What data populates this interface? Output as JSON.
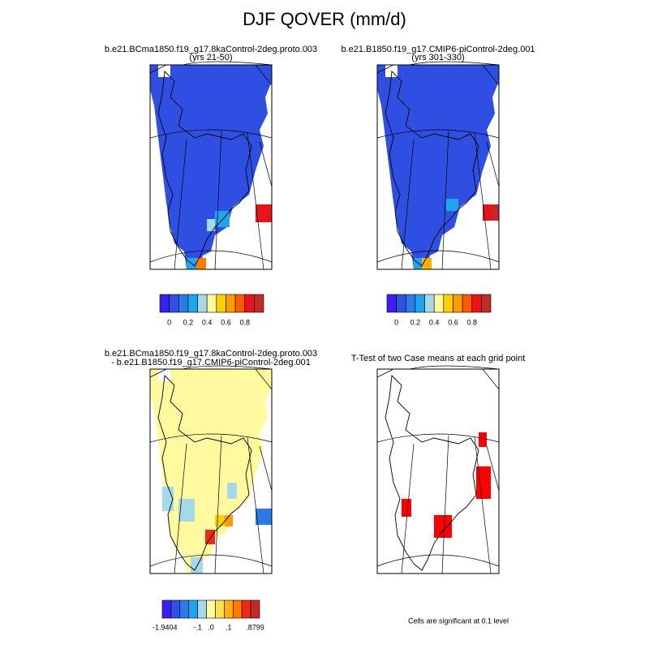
{
  "title": "DJF QOVER (mm/d)",
  "panels": [
    {
      "title": "b.e21.BCma1850.f19_g17.8kaControl-2deg.proto.003",
      "subtitle": "(yrs 21-50)"
    },
    {
      "title": "b.e21.B1850.f19_g17.CMIP6-piControl-2deg.001",
      "subtitle": "(yrs 301-330)"
    },
    {
      "title": "b.e21.BCma1850.f19_g17.8kaControl-2deg.proto.003",
      "subtitle": "- b.e21.B1850.f19_g17.CMIP6-piControl-2deg.001"
    },
    {
      "title": "T-Test of two Case means at each grid point",
      "note": "Cells are significant at 0.1 level"
    }
  ],
  "colorbars": [
    {
      "colors": [
        "#3a1ef2",
        "#3050e0",
        "#2a7ae8",
        "#21a4f0",
        "#a7d8e8",
        "#fffaa0",
        "#ffd000",
        "#ff9a00",
        "#ff5a00",
        "#e8141a",
        "#c02a2a"
      ],
      "labels": [
        "0",
        "0.2",
        "0.4",
        "0.6",
        "0.8"
      ]
    },
    {
      "colors": [
        "#3a1ef2",
        "#3050e0",
        "#2a7ae8",
        "#21a4f0",
        "#a7d8e8",
        "#fffaa0",
        "#ffd000",
        "#ff9a00",
        "#ff5a00",
        "#e8141a",
        "#c02a2a"
      ],
      "labels": [
        "0",
        "0.2",
        "0.4",
        "0.6",
        "0.8"
      ]
    },
    {
      "colors": [
        "#3a1ef2",
        "#2f4ee2",
        "#2a7ae8",
        "#21a4f0",
        "#a7d8e8",
        "#fffaa0",
        "#ffe04a",
        "#ffb000",
        "#ff7a00",
        "#f0281a",
        "#c02a2a"
      ],
      "labels": [
        "-1.9404",
        "-.1",
        ".0",
        ".1",
        ".8799"
      ]
    }
  ]
}
